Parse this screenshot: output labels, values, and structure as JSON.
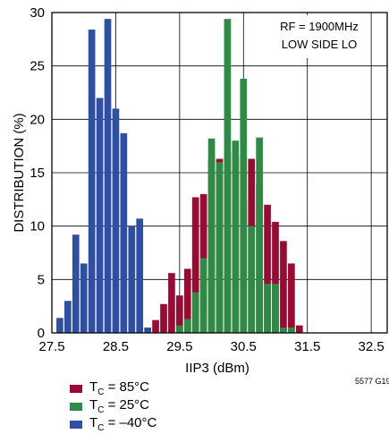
{
  "chart_data": {
    "type": "bar",
    "xlabel": "IIP3 (dBm)",
    "ylabel": "DISTRIBUTION (%)",
    "xlim": [
      27.5,
      32.75
    ],
    "ylim": [
      0,
      30
    ],
    "xticks": [
      "27.5",
      "28.5",
      "29.5",
      "30.5",
      "31.5",
      "32.5"
    ],
    "yticks": [
      "0",
      "5",
      "10",
      "15",
      "20",
      "25",
      "30"
    ],
    "grid": true,
    "annotation": [
      "RF = 1900MHz",
      "LOW SIDE LO"
    ],
    "figure_code": "5577 G19",
    "bin_width": 0.125,
    "series": [
      {
        "label_main": "T",
        "label_sub": "C",
        "label_rest": " = 85°C",
        "color": "#9b0a32",
        "x": [
          29.125,
          29.25,
          29.375,
          29.5,
          29.625,
          29.75,
          29.875,
          30.0,
          30.125,
          30.25,
          30.375,
          30.5,
          30.625,
          30.75,
          30.875,
          31.0,
          31.125,
          31.25,
          31.375
        ],
        "values": [
          1.2,
          2.7,
          5.6,
          3.5,
          6.0,
          12.7,
          13.0,
          16.2,
          16.3,
          17.0,
          16.5,
          12.5,
          16.3,
          14.0,
          12.0,
          10.4,
          8.6,
          6.5,
          0.7
        ]
      },
      {
        "label_main": "T",
        "label_sub": "C",
        "label_rest": " = 25°C",
        "color": "#2e8b46",
        "x": [
          29.5,
          29.625,
          29.75,
          29.875,
          30.0,
          30.125,
          30.25,
          30.375,
          30.5,
          30.625,
          30.75,
          30.875,
          31.0,
          31.125,
          31.25
        ],
        "values": [
          0.7,
          1.3,
          3.8,
          7.0,
          18.2,
          16.0,
          29.4,
          18.0,
          23.8,
          10.0,
          18.3,
          4.6,
          4.6,
          0.5,
          0.5
        ]
      },
      {
        "label_main": "T",
        "label_sub": "C",
        "label_rest": " = –40°C",
        "color": "#2e4fa3",
        "x": [
          27.625,
          27.75,
          27.875,
          28.0,
          28.125,
          28.25,
          28.375,
          28.5,
          28.625,
          28.75,
          28.875,
          29.0
        ],
        "values": [
          1.4,
          3.0,
          9.2,
          6.5,
          28.4,
          22.0,
          29.4,
          21.0,
          18.7,
          10.0,
          10.7,
          0.5
        ]
      }
    ]
  }
}
